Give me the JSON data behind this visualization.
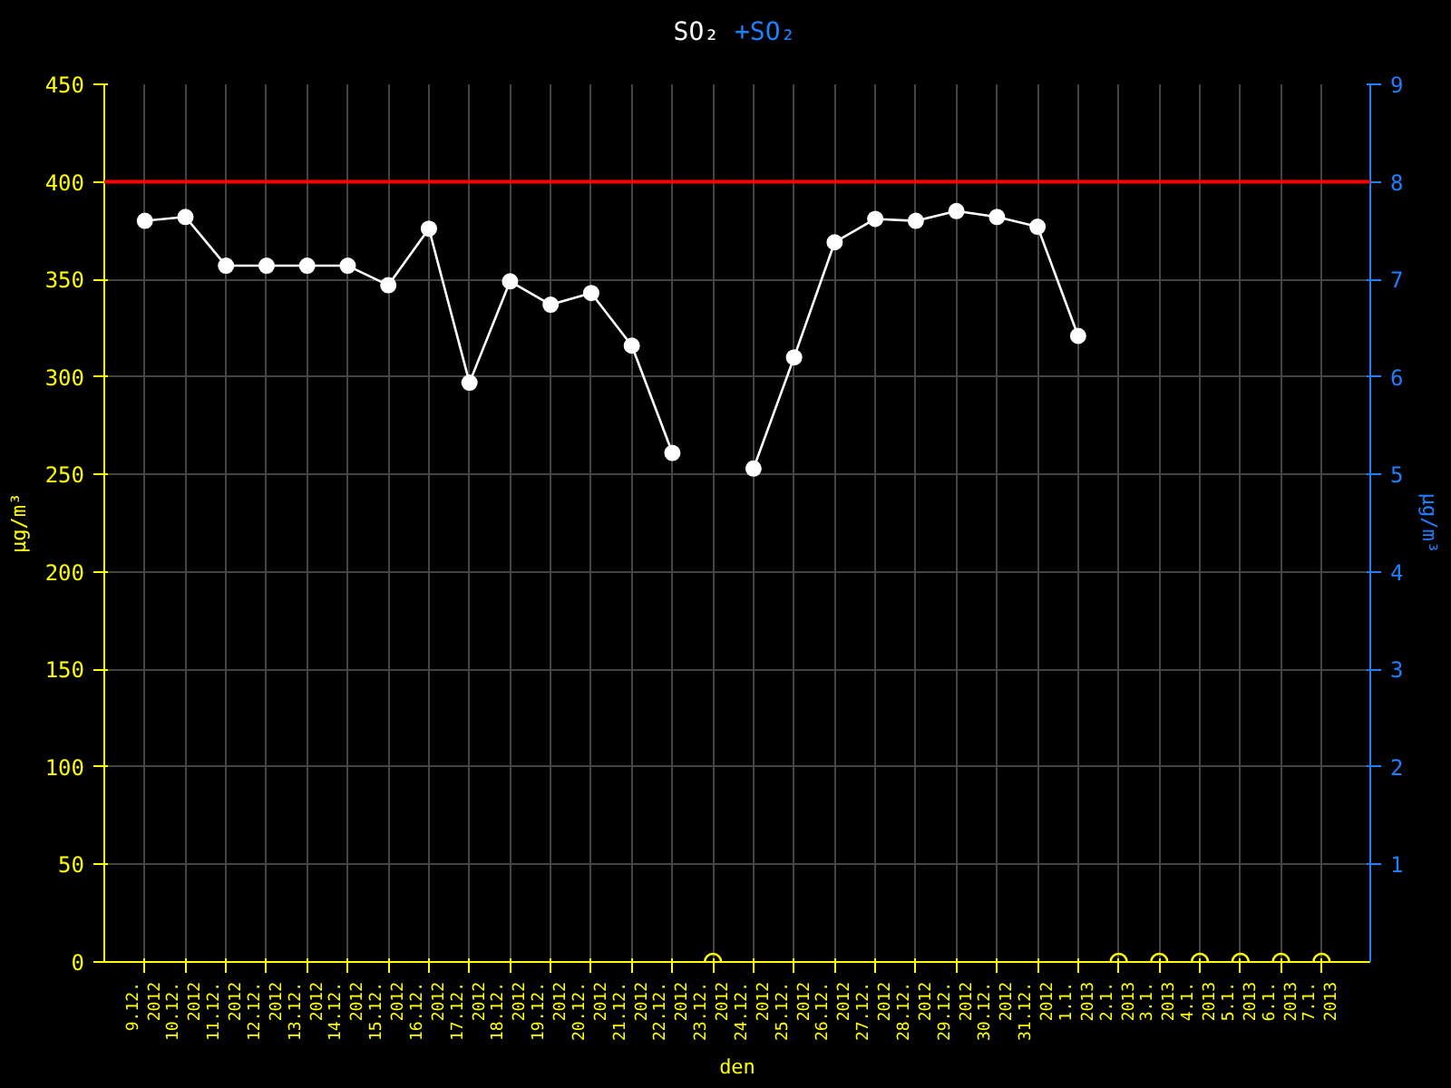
{
  "chart_data": {
    "type": "line",
    "xlabel": "den",
    "ylabel": "µg/m³",
    "y2label": "µg/m³",
    "categories": [
      "9.12.\n2012",
      "10.12.\n2012",
      "11.12.\n2012",
      "12.12.\n2012",
      "13.12.\n2012",
      "14.12.\n2012",
      "15.12.\n2012",
      "16.12.\n2012",
      "17.12.\n2012",
      "18.12.\n2012",
      "19.12.\n2012",
      "20.12.\n2012",
      "21.12.\n2012",
      "22.12.\n2012",
      "23.12.\n2012",
      "24.12.\n2012",
      "25.12.\n2012",
      "26.12.\n2012",
      "27.12.\n2012",
      "28.12.\n2012",
      "29.12.\n2012",
      "30.12.\n2012",
      "31.12.\n2012",
      "1.1.\n2013",
      "2.1.\n2013",
      "3.1.\n2013",
      "4.1.\n2013",
      "5.1.\n2013",
      "6.1.\n2013",
      "7.1.\n2013"
    ],
    "series": [
      {
        "name": "SO₂",
        "color": "#ffffff",
        "values": [
          380,
          382,
          357,
          357,
          357,
          357,
          347,
          376,
          297,
          349,
          337,
          343,
          316,
          261,
          null,
          253,
          310,
          369,
          381,
          380,
          385,
          382,
          377,
          321,
          null,
          null,
          null,
          null,
          null,
          null
        ]
      },
      {
        "name": "+SO₂",
        "color": "#1e7fff",
        "axis": "y2",
        "values": [
          null,
          null,
          null,
          null,
          null,
          null,
          null,
          null,
          null,
          null,
          null,
          null,
          null,
          null,
          null,
          null,
          null,
          null,
          null,
          null,
          null,
          null,
          null,
          null,
          null,
          null,
          null,
          null,
          null,
          null
        ]
      },
      {
        "type": "scatter",
        "color": "#ffff00",
        "values": [
          null,
          null,
          null,
          null,
          null,
          null,
          null,
          null,
          null,
          null,
          null,
          null,
          null,
          null,
          0,
          null,
          null,
          null,
          null,
          null,
          null,
          null,
          null,
          null,
          0,
          0,
          0,
          0,
          0,
          0
        ]
      }
    ],
    "ylim": [
      0,
      450
    ],
    "yticks": [
      0,
      50,
      100,
      150,
      200,
      250,
      300,
      350,
      400,
      450
    ],
    "y2lim": [
      0,
      9
    ],
    "y2ticks": [
      1,
      2,
      3,
      4,
      5,
      6,
      7,
      8,
      9
    ],
    "ref_lines": [
      {
        "axis": "y",
        "value": 400,
        "color": "#ff0000"
      }
    ],
    "grid": true,
    "marker": "circle"
  }
}
